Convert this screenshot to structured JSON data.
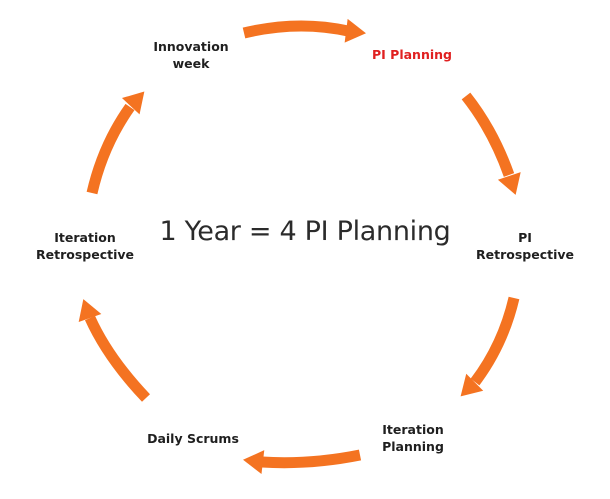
{
  "center_title": "1 Year = 4 PI Planning",
  "accent_color": "#f47321",
  "highlight_color": "#e02020",
  "stages": [
    {
      "label": "PI Planning",
      "highlighted": true
    },
    {
      "label": "PI\nRetrospective",
      "highlighted": false
    },
    {
      "label": "Iteration\nPlanning",
      "highlighted": false
    },
    {
      "label": "Daily Scrums",
      "highlighted": false
    },
    {
      "label": "Iteration\nRetrospective",
      "highlighted": false
    },
    {
      "label": "Innovation\nweek",
      "highlighted": false
    }
  ]
}
